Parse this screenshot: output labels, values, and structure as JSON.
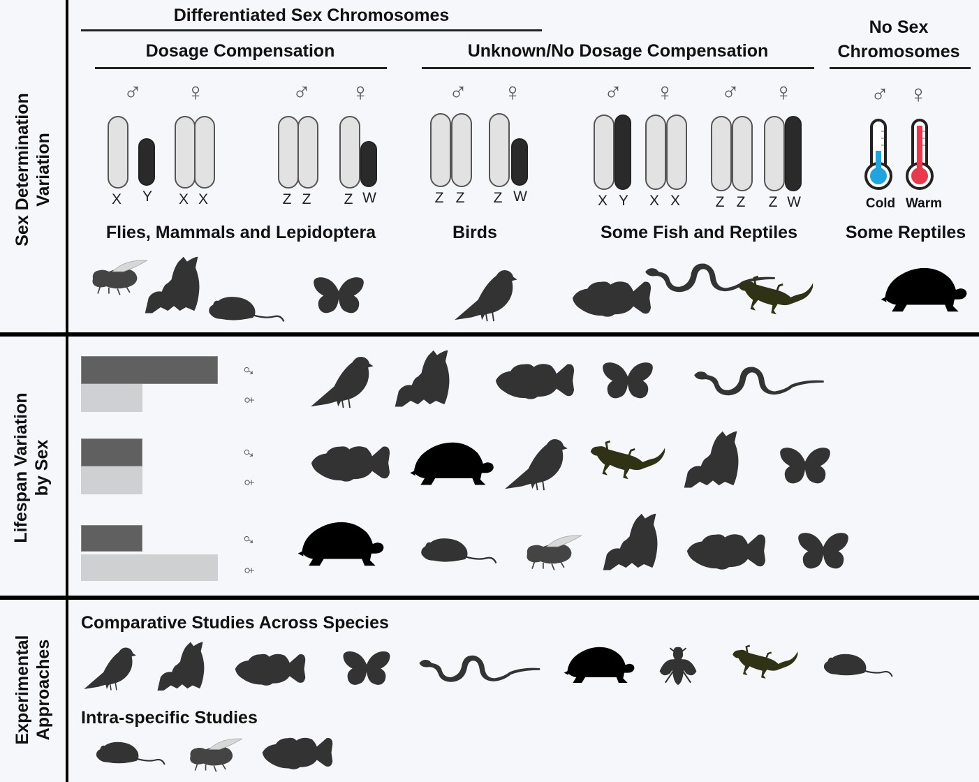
{
  "sections": {
    "sex_determination": {
      "line1": "Sex Determination",
      "line2": "Variation"
    },
    "lifespan": {
      "line1": "Lifespan Variation",
      "line2": "by Sex"
    },
    "experimental": {
      "line1": "Experimental",
      "line2": "Approaches"
    }
  },
  "headers": {
    "differentiated": "Differentiated Sex Chromosomes",
    "dosage": "Dosage Compensation",
    "unknown": "Unknown/No Dosage Compensation",
    "no_sex_line1": "No Sex",
    "no_sex_line2": "Chromosomes"
  },
  "symbols": {
    "male": "♂",
    "female": "♀"
  },
  "chromosome_labels": {
    "x": "X",
    "y": "Y",
    "z": "Z",
    "w": "W"
  },
  "thermometers": {
    "cold": "Cold",
    "warm": "Warm",
    "cold_color": "#1fa4dd",
    "warm_color": "#e8394d"
  },
  "groups": {
    "flies_mammals": "Flies, Mammals and Lepidoptera",
    "birds": "Birds",
    "fish_reptiles": "Some Fish and Reptiles",
    "some_reptiles": "Some Reptiles"
  },
  "lifespan_rows": [
    {
      "male": 1.0,
      "female": 0.45
    },
    {
      "male": 0.45,
      "female": 0.45
    },
    {
      "male": 0.45,
      "female": 1.0
    }
  ],
  "experimental": {
    "comparative": "Comparative Studies Across Species",
    "intra": "Intra-specific Studies"
  },
  "colors": {
    "male_bar": "#606060",
    "female_bar": "#cfd0d2",
    "lizard": "#2f3214",
    "silhouette": "#333333"
  }
}
